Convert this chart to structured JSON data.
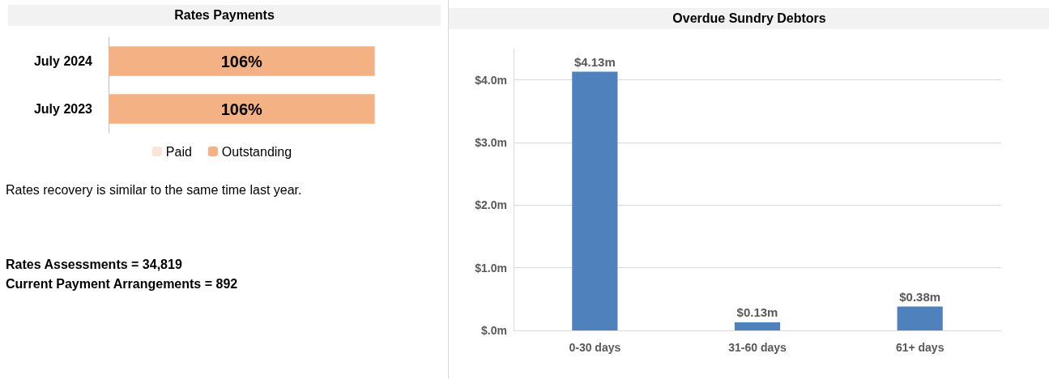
{
  "chart_data": [
    {
      "type": "bar",
      "title": "Rates Payments",
      "orientation": "horizontal",
      "stacked": true,
      "categories": [
        "July 2024",
        "July 2023"
      ],
      "series": [
        {
          "name": "Paid",
          "color": "#fbe5d6",
          "values": [
            0,
            0
          ]
        },
        {
          "name": "Outstanding",
          "color": "#f4b183",
          "values": [
            106,
            106
          ],
          "value_labels": [
            "106%",
            "106%"
          ]
        }
      ],
      "legend": "bottom",
      "grid": false,
      "annotations": [
        "Rates recovery is similar to the same time last year.",
        "Rates Assessments = 34,819",
        "Current Payment Arrangements = 892"
      ]
    },
    {
      "type": "bar",
      "title": "Overdue Sundry Debtors",
      "categories": [
        "0-30 days",
        "31-60 days",
        "61+ days"
      ],
      "values": [
        4.13,
        0.13,
        0.38
      ],
      "color": "#4f81bd",
      "value_labels": [
        "$4.13m",
        "$0.13m",
        "$0.38m"
      ],
      "ylim": [
        0,
        4.5
      ],
      "yticks": [
        {
          "value": 0,
          "label": "$.0m"
        },
        {
          "value": 1,
          "label": "$1.0m"
        },
        {
          "value": 2,
          "label": "$2.0m"
        },
        {
          "value": 3,
          "label": "$3.0m"
        },
        {
          "value": 4,
          "label": "$4.0m"
        }
      ],
      "grid": "y"
    }
  ]
}
